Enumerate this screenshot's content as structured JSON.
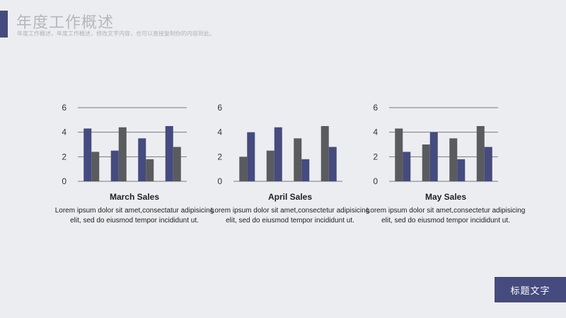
{
  "header": {
    "title": "年度工作概述",
    "subtitle": "年度工作概述，年度工作概述，修改文字内容，也可以直接复制你的内容到此。"
  },
  "colors": {
    "accent": "#454b7e",
    "series_blue": "#454b7e",
    "series_gray": "#5a5b5e"
  },
  "footer": {
    "button_label": "标题文字"
  },
  "chart_data": [
    {
      "type": "bar",
      "title": "March  Sales",
      "description": "Lorem ipsum dolor sit amet,consectatur adipisicing elit, sed do eiusmod tempor incididunt ut.",
      "categories": [
        "",
        "",
        "",
        ""
      ],
      "ylim": [
        0,
        6
      ],
      "yticks": [
        0,
        2,
        4,
        6
      ],
      "grid": true,
      "series": [
        {
          "color": "#454b7e",
          "values": [
            4.3,
            2.5,
            3.5,
            4.5
          ]
        },
        {
          "color": "#5a5b5e",
          "values": [
            2.4,
            4.4,
            1.8,
            2.8
          ]
        }
      ]
    },
    {
      "type": "bar",
      "title": "April  Sales",
      "description": "Lorem ipsum dolor sit amet,consectetur adipisicing elit, sed do eiusmod tempor incididunt ut.",
      "categories": [
        "",
        "",
        "",
        ""
      ],
      "ylim": [
        0,
        6
      ],
      "yticks": [
        0,
        2,
        4,
        6
      ],
      "grid": false,
      "series": [
        {
          "color": "#5a5b5e",
          "values": [
            2.0,
            2.5,
            3.5,
            4.5
          ]
        },
        {
          "color": "#454b7e",
          "values": [
            4.0,
            4.4,
            1.8,
            2.8
          ]
        }
      ]
    },
    {
      "type": "bar",
      "title": "May  Sales",
      "description": "Lorem ipsum dolor sit amet,consectetur adipisicing elit, sed do eiusmod tempor incididunt ut.",
      "categories": [
        "",
        "",
        "",
        ""
      ],
      "ylim": [
        0,
        6
      ],
      "yticks": [
        0,
        2,
        4,
        6
      ],
      "grid": true,
      "series": [
        {
          "color": "#5a5b5e",
          "values": [
            4.3,
            3.0,
            3.5,
            4.5
          ]
        },
        {
          "color": "#454b7e",
          "values": [
            2.4,
            4.0,
            1.8,
            2.8
          ]
        }
      ]
    }
  ]
}
